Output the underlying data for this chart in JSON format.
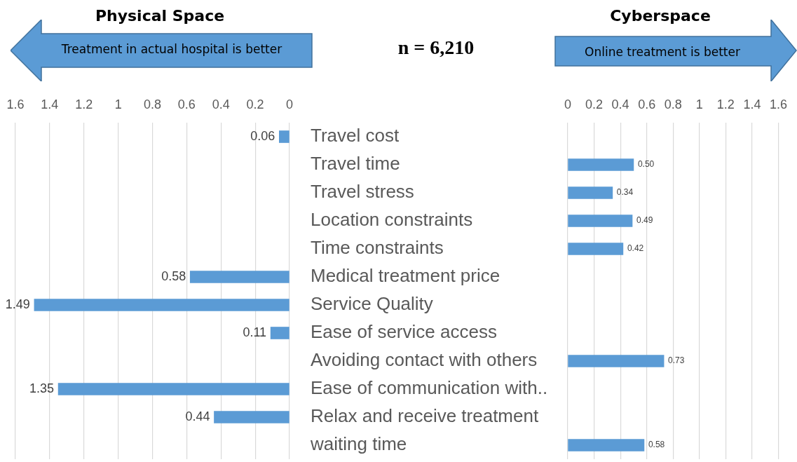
{
  "chart_data": [
    {
      "type": "bar",
      "orientation": "horizontal",
      "categories": [
        "Travel cost",
        "Travel time",
        "Travel stress",
        "Location constraints",
        "Time constraints",
        "Medical treatment price",
        "Service Quality",
        "Ease of service access",
        "Avoiding contact with others",
        "Ease of communication with..",
        "Relax and receive treatment",
        "waiting time"
      ],
      "values": [
        0.06,
        null,
        null,
        null,
        null,
        0.58,
        1.49,
        0.11,
        null,
        1.35,
        0.44,
        null
      ],
      "value_labels": [
        "0.06",
        null,
        null,
        null,
        null,
        "0.58",
        "1.49",
        "0.11",
        null,
        "1.35",
        "0.44",
        null
      ],
      "color": "#5b9bd5",
      "xlim": [
        1.6,
        0
      ],
      "xticks": [
        0,
        0.2,
        0.4,
        0.6,
        0.8,
        1,
        1.2,
        1.4,
        1.6
      ],
      "grid": "x",
      "annotations": [
        "Physical Space",
        "Treatment in actual hospital is better",
        "n = 6,210"
      ]
    },
    {
      "type": "bar",
      "orientation": "horizontal",
      "categories": [
        null,
        null,
        null,
        null,
        null,
        null,
        null,
        null,
        null,
        null,
        null,
        null
      ],
      "values": [
        null,
        0.5,
        0.34,
        0.49,
        0.42,
        null,
        null,
        null,
        0.73,
        null,
        null,
        0.58
      ],
      "value_labels": [
        null,
        "0.50",
        "0.34",
        "0.49",
        "0.42",
        null,
        null,
        null,
        "0.73",
        null,
        null,
        "0.58"
      ],
      "color": "#5b9bd5",
      "xlim": [
        0,
        1.6
      ],
      "xticks": [
        0,
        0.2,
        0.4,
        0.6,
        0.8,
        1,
        1.2,
        1.4,
        1.6
      ],
      "grid": "x",
      "tick_labels": "x",
      "annotations": [
        "Cyberspace",
        "Online treatment is better"
      ]
    }
  ]
}
